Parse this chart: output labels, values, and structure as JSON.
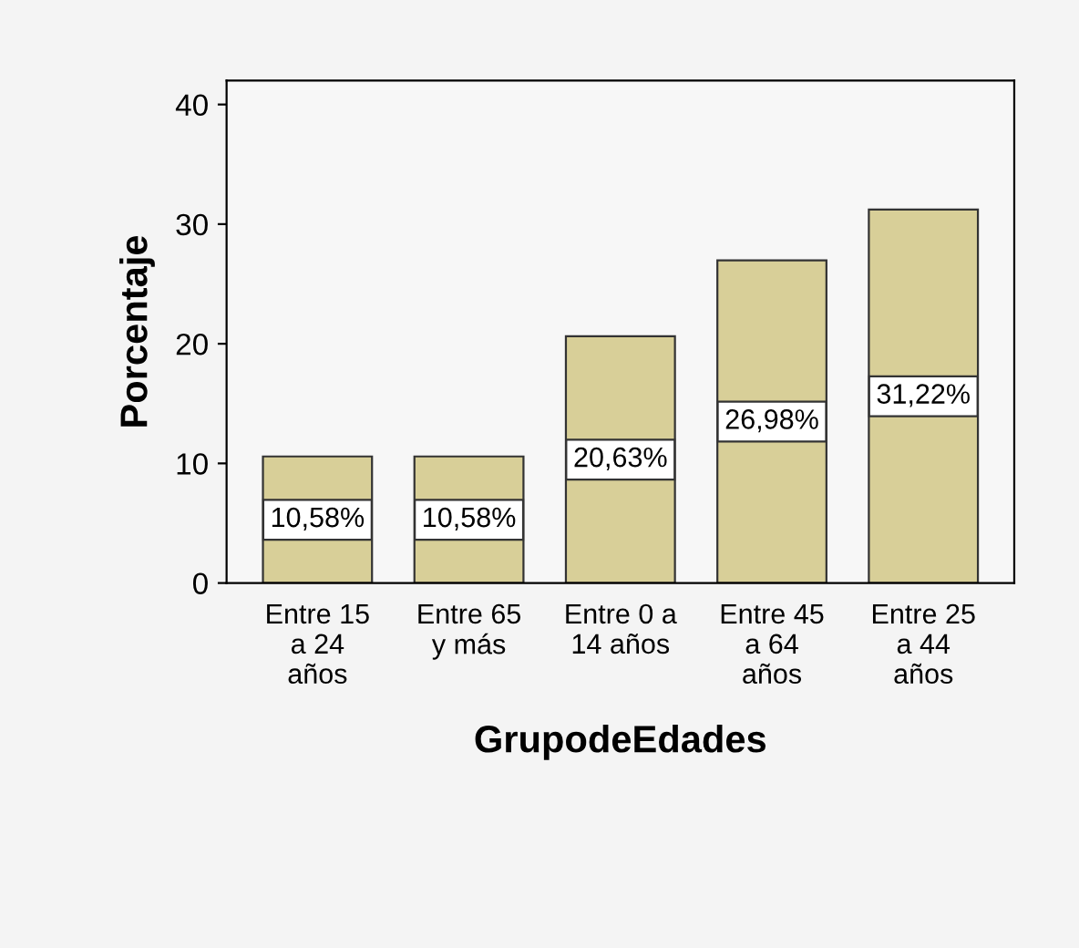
{
  "chart_data": {
    "type": "bar",
    "xlabel": "GrupodeEdades",
    "ylabel": "Porcentaje",
    "categories": [
      "Entre 15\na 24\naños",
      "Entre 65\ny más",
      "Entre 0 a\n14 años",
      "Entre 45\na 64\naños",
      "Entre 25\na 44\naños"
    ],
    "values": [
      10.58,
      10.58,
      20.63,
      26.98,
      31.22
    ],
    "value_labels": [
      "10,58%",
      "10,58%",
      "20,63%",
      "26,98%",
      "31,22%"
    ],
    "color": "#d8cf98",
    "ylim": [
      0,
      42
    ],
    "yticks": [
      0,
      10,
      20,
      30,
      40
    ],
    "grid": false
  }
}
